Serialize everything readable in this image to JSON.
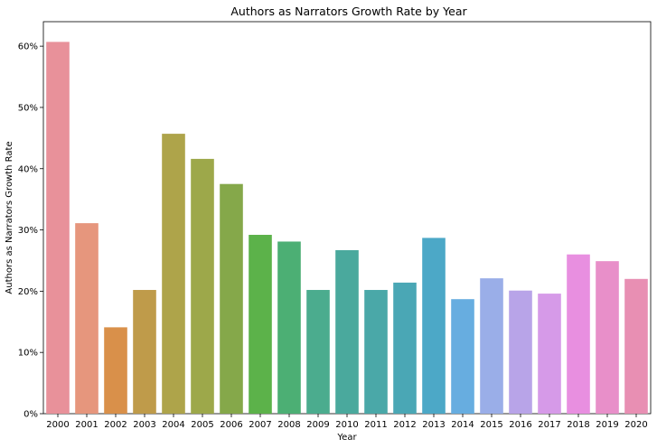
{
  "chart_data": {
    "type": "bar",
    "title": "Authors as Narrators Growth Rate by Year",
    "xlabel": "Year",
    "ylabel": "Authors as Narrators Growth Rate",
    "categories": [
      "2000",
      "2001",
      "2002",
      "2003",
      "2004",
      "2005",
      "2006",
      "2007",
      "2008",
      "2009",
      "2010",
      "2011",
      "2012",
      "2013",
      "2014",
      "2015",
      "2016",
      "2017",
      "2018",
      "2019",
      "2020"
    ],
    "values": [
      60.7,
      31.1,
      14.1,
      20.2,
      45.7,
      41.6,
      37.5,
      29.2,
      28.1,
      20.2,
      26.7,
      20.2,
      21.4,
      28.7,
      18.7,
      22.1,
      20.1,
      19.6,
      26.0,
      24.9,
      22.0
    ],
    "ylim": [
      0,
      64
    ],
    "yticks": [
      0,
      10,
      20,
      30,
      40,
      50,
      60
    ],
    "yticks_labels": [
      "0%",
      "10%",
      "20%",
      "30%",
      "40%",
      "50%",
      "60%"
    ],
    "grid": false,
    "colors": [
      "#e8919a",
      "#e6967d",
      "#d9904a",
      "#bf9b4a",
      "#aea44a",
      "#9da84a",
      "#85a84a",
      "#5cb24a",
      "#4caf74",
      "#4bac8e",
      "#4aa99d",
      "#4aa8a8",
      "#4aa7b5",
      "#4ca8c7",
      "#67ade0",
      "#9aaee8",
      "#b8a4e8",
      "#d69ae8",
      "#e88fe0",
      "#e88fc9",
      "#e88fb3"
    ]
  }
}
